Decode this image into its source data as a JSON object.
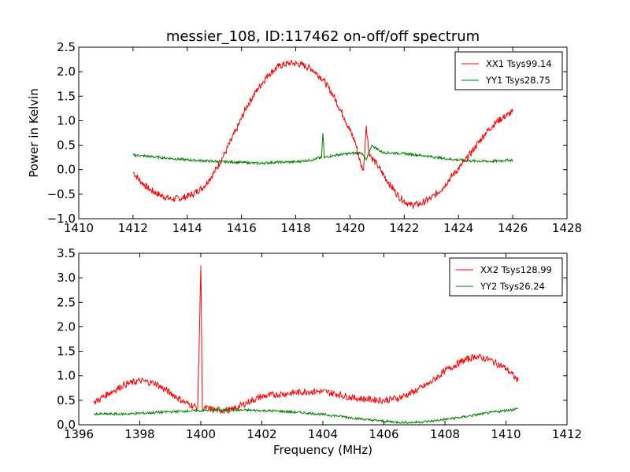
{
  "chart_data": [
    {
      "type": "line",
      "title": "messier_108, ID:117462 on-off/off spectrum",
      "xlabel": "",
      "ylabel": "Power in Kelvin",
      "xlim": [
        1410,
        1428
      ],
      "ylim": [
        -1.0,
        2.5
      ],
      "xticks": [
        1410,
        1412,
        1414,
        1416,
        1418,
        1420,
        1422,
        1424,
        1426,
        1428
      ],
      "yticks": [
        -1.0,
        -0.5,
        0.0,
        0.5,
        1.0,
        1.5,
        2.0,
        2.5
      ],
      "xtick_labels": [
        "1410",
        "1412",
        "1414",
        "1416",
        "1418",
        "1420",
        "1422",
        "1424",
        "1426",
        "1428"
      ],
      "ytick_labels": [
        "−1.0",
        "−0.5",
        "0.0",
        "0.5",
        "1.0",
        "1.5",
        "2.0",
        "2.5"
      ],
      "grid": false,
      "legend_position": "top-right",
      "series": [
        {
          "name": "XX1 Tsys99.14",
          "color": "#ff0000",
          "x": [
            1412.0,
            1412.3,
            1412.6,
            1413.0,
            1413.4,
            1413.8,
            1414.2,
            1414.6,
            1415.0,
            1415.4,
            1415.8,
            1416.2,
            1416.6,
            1417.0,
            1417.4,
            1417.8,
            1418.2,
            1418.6,
            1419.0,
            1419.4,
            1419.8,
            1420.2,
            1420.4,
            1420.5,
            1420.6,
            1420.7,
            1420.8,
            1421.0,
            1421.4,
            1421.8,
            1422.2,
            1422.6,
            1423.0,
            1423.4,
            1423.8,
            1424.2,
            1424.6,
            1425.0,
            1425.4,
            1425.8,
            1426.0
          ],
          "y": [
            -0.05,
            -0.25,
            -0.4,
            -0.52,
            -0.6,
            -0.58,
            -0.5,
            -0.35,
            -0.05,
            0.35,
            0.8,
            1.3,
            1.65,
            1.95,
            2.12,
            2.18,
            2.15,
            2.05,
            1.85,
            1.5,
            1.05,
            0.55,
            0.1,
            0.0,
            0.9,
            0.35,
            0.25,
            0.1,
            -0.25,
            -0.55,
            -0.72,
            -0.7,
            -0.58,
            -0.38,
            -0.1,
            0.15,
            0.45,
            0.75,
            0.98,
            1.12,
            1.18
          ]
        },
        {
          "name": "YY1 Tsys28.75",
          "color": "#008000",
          "x": [
            1412.0,
            1413.0,
            1414.0,
            1415.0,
            1416.0,
            1416.6,
            1417.2,
            1418.0,
            1418.6,
            1418.95,
            1419.0,
            1419.05,
            1419.5,
            1420.0,
            1420.4,
            1420.6,
            1420.8,
            1421.2,
            1422.0,
            1422.8,
            1423.6,
            1424.4,
            1425.2,
            1426.0
          ],
          "y": [
            0.3,
            0.25,
            0.2,
            0.17,
            0.15,
            0.13,
            0.15,
            0.16,
            0.2,
            0.25,
            0.75,
            0.25,
            0.3,
            0.33,
            0.35,
            0.2,
            0.5,
            0.35,
            0.33,
            0.28,
            0.22,
            0.18,
            0.17,
            0.2
          ]
        }
      ]
    },
    {
      "type": "line",
      "title": "",
      "xlabel": "Frequency (MHz)",
      "ylabel": "",
      "xlim": [
        1396,
        1412
      ],
      "ylim": [
        0.0,
        3.5
      ],
      "xticks": [
        1396,
        1398,
        1400,
        1402,
        1404,
        1406,
        1408,
        1410,
        1412
      ],
      "yticks": [
        0.0,
        0.5,
        1.0,
        1.5,
        2.0,
        2.5,
        3.0,
        3.5
      ],
      "xtick_labels": [
        "1396",
        "1398",
        "1400",
        "1402",
        "1404",
        "1406",
        "1408",
        "1410",
        "1412"
      ],
      "ytick_labels": [
        "0.0",
        "0.5",
        "1.0",
        "1.5",
        "2.0",
        "2.5",
        "3.0",
        "3.5"
      ],
      "grid": false,
      "legend_position": "top-right",
      "series": [
        {
          "name": "XX2 Tsys128.99",
          "color": "#ff0000",
          "x": [
            1396.5,
            1397.0,
            1397.5,
            1398.0,
            1398.5,
            1399.0,
            1399.5,
            1399.9,
            1400.0,
            1400.05,
            1400.5,
            1401.0,
            1401.5,
            1402.0,
            1402.5,
            1403.0,
            1403.5,
            1404.0,
            1404.5,
            1405.0,
            1405.5,
            1406.0,
            1406.5,
            1407.0,
            1407.5,
            1408.0,
            1408.5,
            1409.0,
            1409.5,
            1410.0,
            1410.4
          ],
          "y": [
            0.45,
            0.65,
            0.82,
            0.9,
            0.85,
            0.65,
            0.45,
            0.35,
            3.25,
            0.35,
            0.3,
            0.3,
            0.45,
            0.58,
            0.62,
            0.65,
            0.68,
            0.68,
            0.62,
            0.55,
            0.52,
            0.5,
            0.55,
            0.68,
            0.85,
            1.1,
            1.28,
            1.4,
            1.32,
            1.15,
            0.9
          ]
        },
        {
          "name": "YY2 Tsys26.24",
          "color": "#008000",
          "x": [
            1396.5,
            1397.5,
            1398.5,
            1399.5,
            1400.5,
            1401.5,
            1402.5,
            1403.5,
            1404.5,
            1405.5,
            1406.5,
            1407.0,
            1407.5,
            1408.5,
            1409.5,
            1410.4
          ],
          "y": [
            0.22,
            0.22,
            0.25,
            0.28,
            0.3,
            0.3,
            0.28,
            0.24,
            0.18,
            0.1,
            0.05,
            0.05,
            0.07,
            0.15,
            0.25,
            0.33
          ]
        }
      ]
    }
  ]
}
